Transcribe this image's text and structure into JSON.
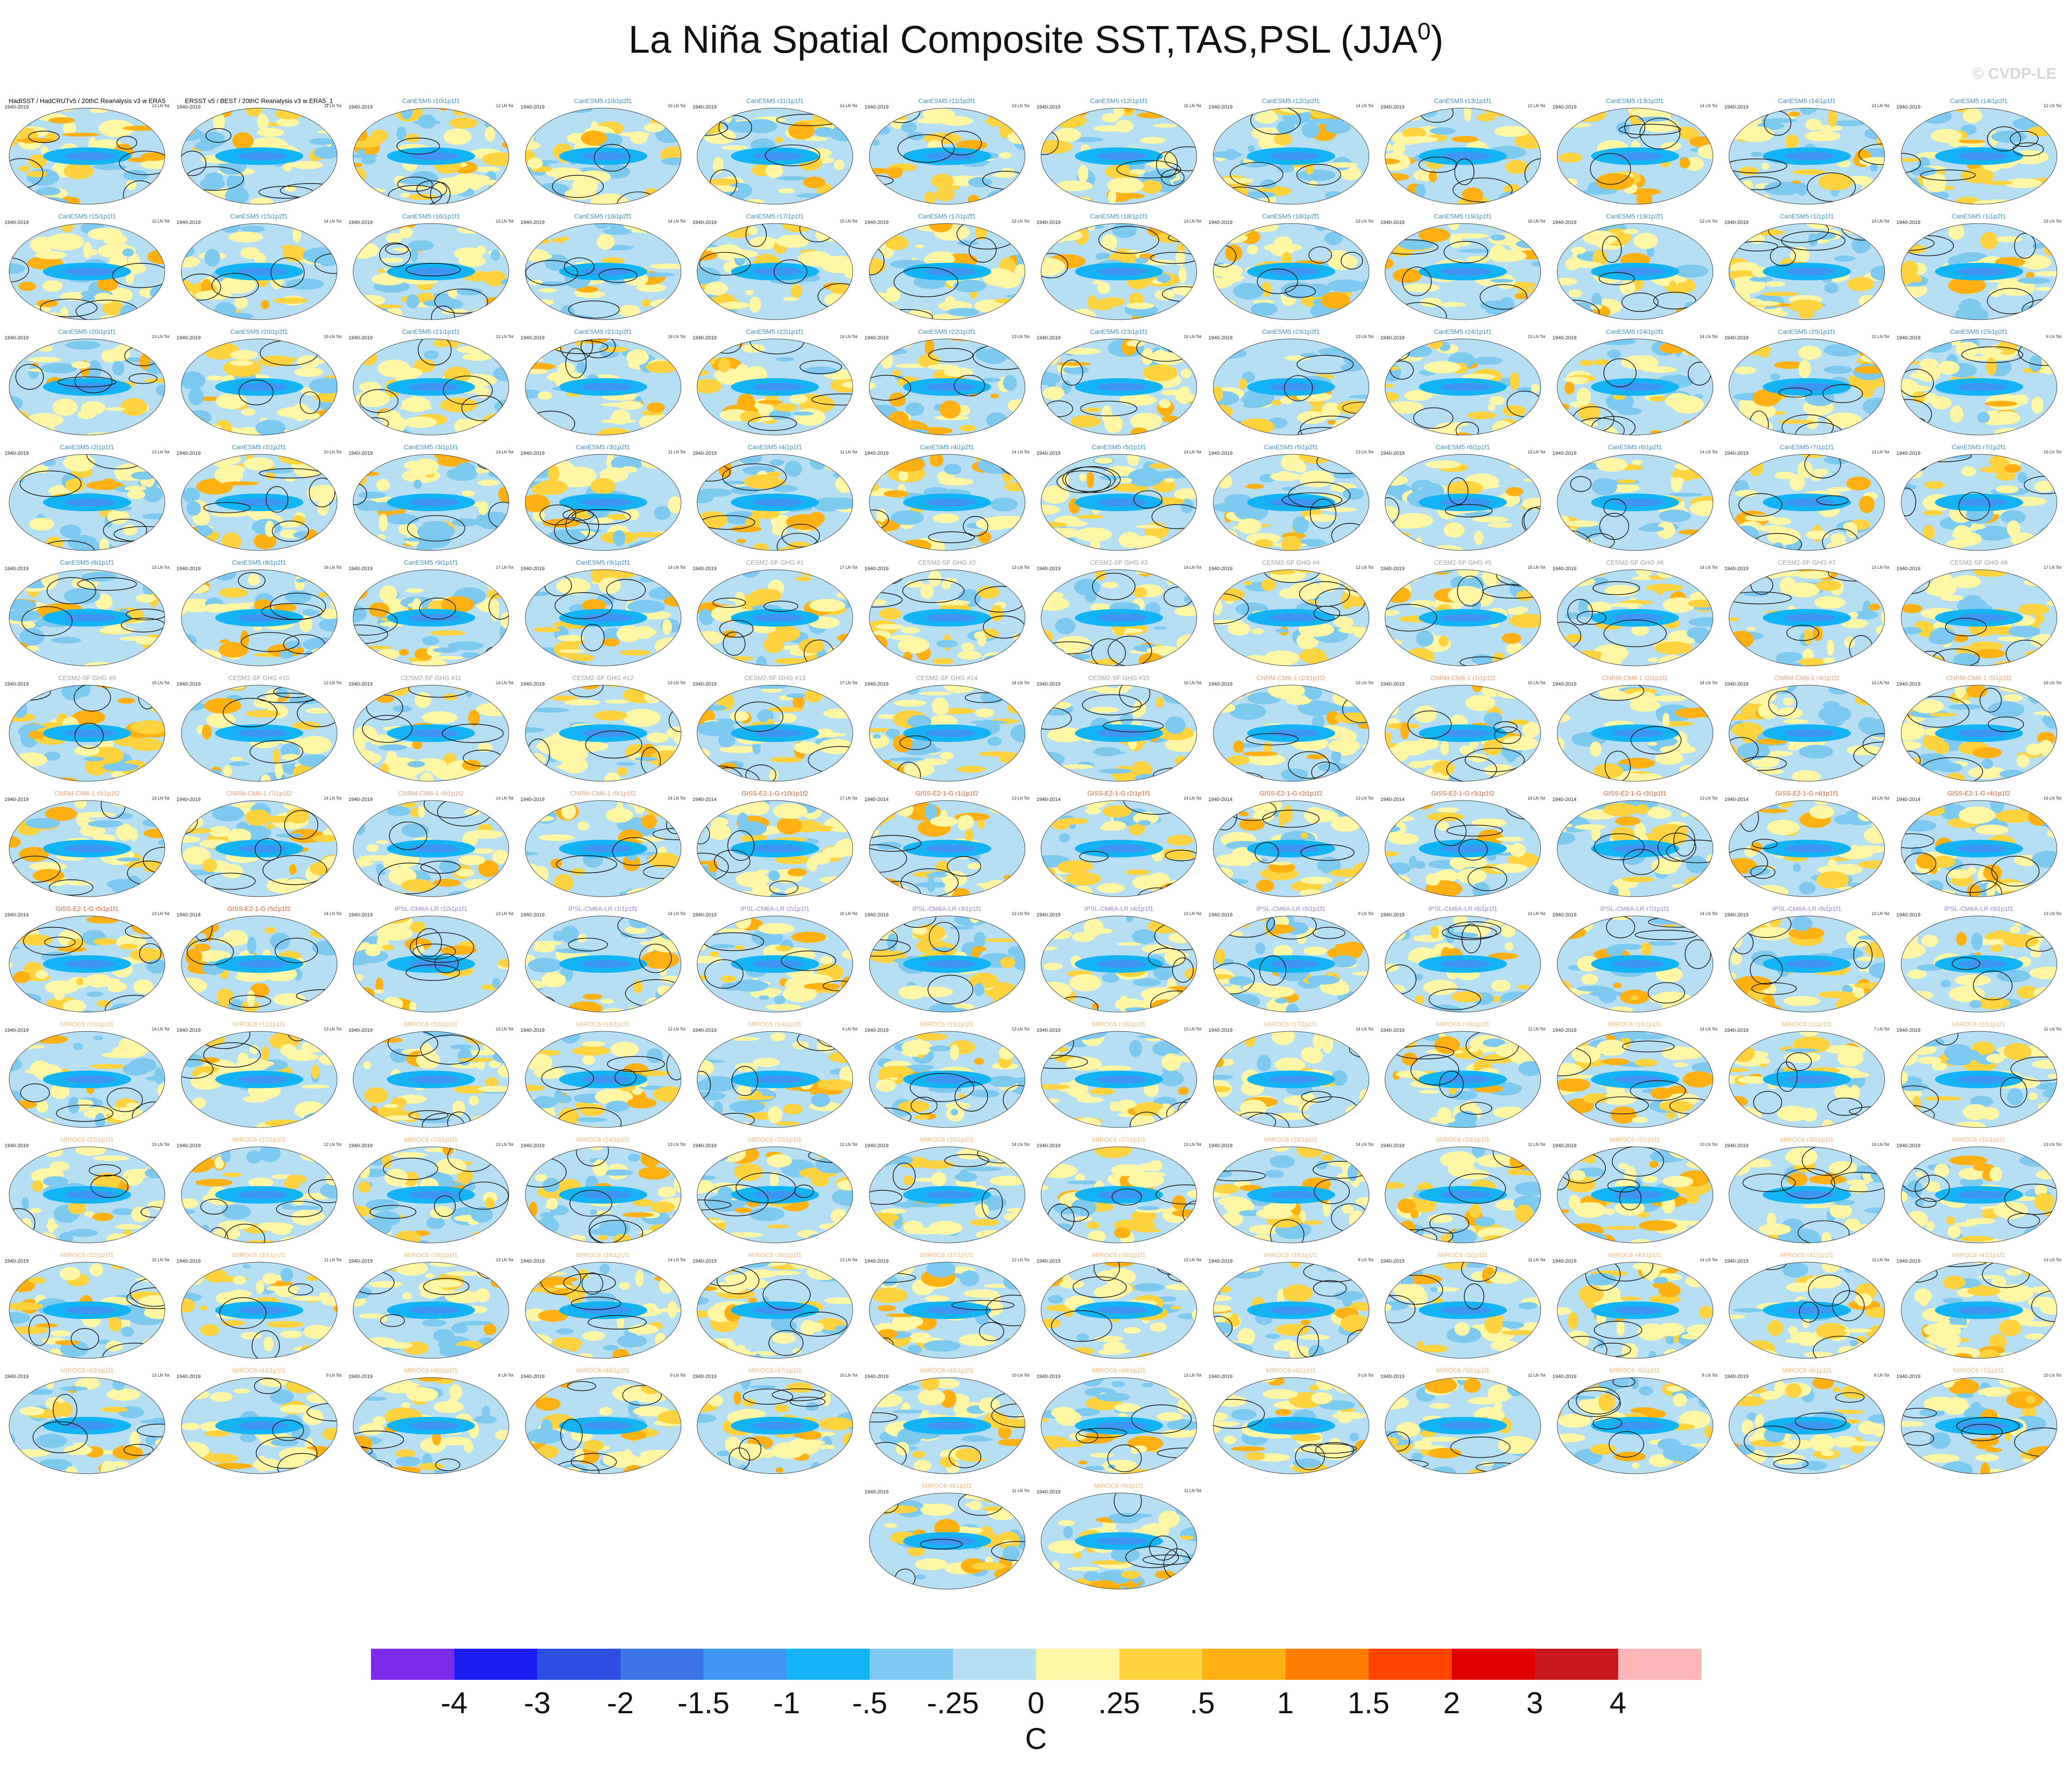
{
  "title": "La Niña Spatial Composite SST,TAS,PSL (JJA",
  "title_superscript": "0",
  "title_close": ")",
  "watermark": "© CVDP-LE",
  "panel_title_colors": {
    "obs": "#000000",
    "CanESM5": "#3a8fc4",
    "CESM2-SF GHG": "#9aa0a6",
    "CNRM-CM6-1": "#e8a07a",
    "GISS-E2-1-G": "#d06030",
    "IPSL-CM6A-LR": "#9b7fd8",
    "MIROC6": "#f0b97a"
  },
  "panels": [
    {
      "title": "HadISST / HadCRUTv5 / 20thC Reanalysis v3 w ERA5",
      "years": "1940-2019",
      "stat": "13 LN Tot",
      "group": "obs"
    },
    {
      "title": "ERSST v5 / BEST / 20thC Reanalysis v3 w ERA5_1",
      "years": "1940-2019",
      "stat": "11 LN Tot",
      "group": "obs"
    },
    {
      "title": "CanESM5 r10i1p1f1",
      "years": "1940-2019",
      "stat": "12 LN Tot",
      "group": "CanESM5"
    },
    {
      "title": "CanESM5 r10i1p2f1",
      "years": "1940-2019",
      "stat": "16 LN Tot",
      "group": "CanESM5"
    },
    {
      "title": "CanESM5 r11i1p1f1",
      "years": "1940-2019",
      "stat": "14 LN Tot",
      "group": "CanESM5"
    },
    {
      "title": "CanESM5 r11i1p2f1",
      "years": "1940-2019",
      "stat": "13 LN Tot",
      "group": "CanESM5"
    },
    {
      "title": "CanESM5 r12i1p1f1",
      "years": "1940-2019",
      "stat": "15 LN Tot",
      "group": "CanESM5"
    },
    {
      "title": "CanESM5 r12i1p2f1",
      "years": "1940-2019",
      "stat": "14 LN Tot",
      "group": "CanESM5"
    },
    {
      "title": "CanESM5 r13i1p1f1",
      "years": "1940-2019",
      "stat": "12 LN Tot",
      "group": "CanESM5"
    },
    {
      "title": "CanESM5 r13i1p2f1",
      "years": "1940-2019",
      "stat": "14 LN Tot",
      "group": "CanESM5"
    },
    {
      "title": "CanESM5 r14i1p1f1",
      "years": "1940-2019",
      "stat": "13 LN Tot",
      "group": "CanESM5"
    },
    {
      "title": "CanESM5 r14i1p2f1",
      "years": "1940-2019",
      "stat": "12 LN Tot",
      "group": "CanESM5"
    },
    {
      "title": "CanESM5 r15i1p1f1",
      "years": "1940-2019",
      "stat": "12 LN Tot",
      "group": "CanESM5"
    },
    {
      "title": "CanESM5 r15i1p2f1",
      "years": "1940-2019",
      "stat": "14 LN Tot",
      "group": "CanESM5"
    },
    {
      "title": "CanESM5 r16i1p1f1",
      "years": "1940-2019",
      "stat": "13 LN Tot",
      "group": "CanESM5"
    },
    {
      "title": "CanESM5 r16i1p2f1",
      "years": "1940-2019",
      "stat": "14 LN Tot",
      "group": "CanESM5"
    },
    {
      "title": "CanESM5 r17i1p1f1",
      "years": "1940-2019",
      "stat": "15 LN Tot",
      "group": "CanESM5"
    },
    {
      "title": "CanESM5 r17i1p2f1",
      "years": "1940-2019",
      "stat": "13 LN Tot",
      "group": "CanESM5"
    },
    {
      "title": "CanESM5 r18i1p1f1",
      "years": "1940-2019",
      "stat": "14 LN Tot",
      "group": "CanESM5"
    },
    {
      "title": "CanESM5 r18i1p2f1",
      "years": "1940-2019",
      "stat": "13 LN Tot",
      "group": "CanESM5"
    },
    {
      "title": "CanESM5 r19i1p1f1",
      "years": "1940-2019",
      "stat": "16 LN Tot",
      "group": "CanESM5"
    },
    {
      "title": "CanESM5 r19i1p2f1",
      "years": "1940-2019",
      "stat": "12 LN Tot",
      "group": "CanESM5"
    },
    {
      "title": "CanESM5 r1i1p1f1",
      "years": "1940-2019",
      "stat": "14 LN Tot",
      "group": "CanESM5"
    },
    {
      "title": "CanESM5 r1i1p2f1",
      "years": "1940-2019",
      "stat": "13 LN Tot",
      "group": "CanESM5"
    },
    {
      "title": "CanESM5 r20i1p1f1",
      "years": "1940-2019",
      "stat": "13 LN Tot",
      "group": "CanESM5"
    },
    {
      "title": "CanESM5 r20i1p2f1",
      "years": "1940-2019",
      "stat": "15 LN Tot",
      "group": "CanESM5"
    },
    {
      "title": "CanESM5 r21i1p1f1",
      "years": "1940-2019",
      "stat": "12 LN Tot",
      "group": "CanESM5"
    },
    {
      "title": "CanESM5 r21i1p2f1",
      "years": "1940-2019",
      "stat": "16 LN Tot",
      "group": "CanESM5"
    },
    {
      "title": "CanESM5 r22i1p1f1",
      "years": "1940-2019",
      "stat": "14 LN Tot",
      "group": "CanESM5"
    },
    {
      "title": "CanESM5 r22i1p2f1",
      "years": "1940-2019",
      "stat": "13 LN Tot",
      "group": "CanESM5"
    },
    {
      "title": "CanESM5 r23i1p1f1",
      "years": "1940-2019",
      "stat": "15 LN Tot",
      "group": "CanESM5"
    },
    {
      "title": "CanESM5 r23i1p2f1",
      "years": "1940-2019",
      "stat": "13 LN Tot",
      "group": "CanESM5"
    },
    {
      "title": "CanESM5 r24i1p1f1",
      "years": "1940-2019",
      "stat": "13 LN Tot",
      "group": "CanESM5"
    },
    {
      "title": "CanESM5 r24i1p2f1",
      "years": "1940-2019",
      "stat": "14 LN Tot",
      "group": "CanESM5"
    },
    {
      "title": "CanESM5 r25i1p1f1",
      "years": "1940-2019",
      "stat": "12 LN Tot",
      "group": "CanESM5"
    },
    {
      "title": "CanESM5 r25i1p2f1",
      "years": "1940-2019",
      "stat": "9 LN Tot",
      "group": "CanESM5"
    },
    {
      "title": "CanESM5 r2i1p1f1",
      "years": "1940-2019",
      "stat": "13 LN Tot",
      "group": "CanESM5"
    },
    {
      "title": "CanESM5 r2i1p2f1",
      "years": "1940-2019",
      "stat": "10 LN Tot",
      "group": "CanESM5"
    },
    {
      "title": "CanESM5 r3i1p1f1",
      "years": "1940-2019",
      "stat": "14 LN Tot",
      "group": "CanESM5"
    },
    {
      "title": "CanESM5 r3i1p2f1",
      "years": "1940-2019",
      "stat": "11 LN Tot",
      "group": "CanESM5"
    },
    {
      "title": "CanESM5 r4i1p1f1",
      "years": "1940-2019",
      "stat": "11 LN Tot",
      "group": "CanESM5"
    },
    {
      "title": "CanESM5 r4i1p2f1",
      "years": "1940-2019",
      "stat": "14 LN Tot",
      "group": "CanESM5"
    },
    {
      "title": "CanESM5 r5i1p1f1",
      "years": "1940-2019",
      "stat": "14 LN Tot",
      "group": "CanESM5"
    },
    {
      "title": "CanESM5 r5i1p2f1",
      "years": "1940-2019",
      "stat": "13 LN Tot",
      "group": "CanESM5"
    },
    {
      "title": "CanESM5 r6i1p1f1",
      "years": "1940-2019",
      "stat": "13 LN Tot",
      "group": "CanESM5"
    },
    {
      "title": "CanESM5 r6i1p2f1",
      "years": "1940-2019",
      "stat": "14 LN Tot",
      "group": "CanESM5"
    },
    {
      "title": "CanESM5 r7i1p1f1",
      "years": "1940-2019",
      "stat": "13 LN Tot",
      "group": "CanESM5"
    },
    {
      "title": "CanESM5 r7i1p2f1",
      "years": "1940-2019",
      "stat": "15 LN Tot",
      "group": "CanESM5"
    },
    {
      "title": "CanESM5 r8i1p1f1",
      "years": "1940-2019",
      "stat": "13 LN Tot",
      "group": "CanESM5"
    },
    {
      "title": "CanESM5 r8i1p2f1",
      "years": "1940-2019",
      "stat": "16 LN Tot",
      "group": "CanESM5"
    },
    {
      "title": "CanESM5 r9i1p1f1",
      "years": "1940-2019",
      "stat": "17 LN Tot",
      "group": "CanESM5"
    },
    {
      "title": "CanESM5 r9i1p2f1",
      "years": "1940-2019",
      "stat": "14 LN Tot",
      "group": "CanESM5"
    },
    {
      "title": "CESM2-SF GHG #1",
      "years": "1940-2019",
      "stat": "17 LN Tot",
      "group": "CESM2-SF GHG"
    },
    {
      "title": "CESM2-SF GHG #2",
      "years": "1940-2019",
      "stat": "13 LN Tot",
      "group": "CESM2-SF GHG"
    },
    {
      "title": "CESM2-SF GHG #3",
      "years": "1940-2019",
      "stat": "14 LN Tot",
      "group": "CESM2-SF GHG"
    },
    {
      "title": "CESM2-SF GHG #4",
      "years": "1940-2019",
      "stat": "12 LN Tot",
      "group": "CESM2-SF GHG"
    },
    {
      "title": "CESM2-SF GHG #5",
      "years": "1940-2019",
      "stat": "15 LN Tot",
      "group": "CESM2-SF GHG"
    },
    {
      "title": "CESM2-SF GHG #6",
      "years": "1940-2019",
      "stat": "14 LN Tot",
      "group": "CESM2-SF GHG"
    },
    {
      "title": "CESM2-SF GHG #7",
      "years": "1940-2019",
      "stat": "13 LN Tot",
      "group": "CESM2-SF GHG"
    },
    {
      "title": "CESM2-SF GHG #8",
      "years": "1940-2019",
      "stat": "17 LN Tot",
      "group": "CESM2-SF GHG"
    },
    {
      "title": "CESM2-SF GHG #9",
      "years": "1940-2019",
      "stat": "15 LN Tot",
      "group": "CESM2-SF GHG"
    },
    {
      "title": "CESM2-SF GHG #10",
      "years": "1940-2019",
      "stat": "12 LN Tot",
      "group": "CESM2-SF GHG"
    },
    {
      "title": "CESM2-SF GHG #11",
      "years": "1940-2019",
      "stat": "14 LN Tot",
      "group": "CESM2-SF GHG"
    },
    {
      "title": "CESM2-SF GHG #12",
      "years": "1940-2019",
      "stat": "13 LN Tot",
      "group": "CESM2-SF GHG"
    },
    {
      "title": "CESM2-SF GHG #13",
      "years": "1940-2019",
      "stat": "17 LN Tot",
      "group": "CESM2-SF GHG"
    },
    {
      "title": "CESM2-SF GHG #14",
      "years": "1940-2019",
      "stat": "14 LN Tot",
      "group": "CESM2-SF GHG"
    },
    {
      "title": "CESM2-SF GHG #15",
      "years": "1940-2019",
      "stat": "16 LN Tot",
      "group": "CESM2-SF GHG"
    },
    {
      "title": "CNRM-CM6-1 r10i1p1f2",
      "years": "1940-2019",
      "stat": "13 LN Tot",
      "group": "CNRM-CM6-1"
    },
    {
      "title": "CNRM-CM6-1 r1i1p1f2",
      "years": "1940-2019",
      "stat": "15 LN Tot",
      "group": "CNRM-CM6-1"
    },
    {
      "title": "CNRM-CM6-1 r2i1p1f2",
      "years": "1940-2019",
      "stat": "14 LN Tot",
      "group": "CNRM-CM6-1"
    },
    {
      "title": "CNRM-CM6-1 r4i1p1f2",
      "years": "1940-2019",
      "stat": "14 LN Tot",
      "group": "CNRM-CM6-1"
    },
    {
      "title": "CNRM-CM6-1 r5i1p1f2",
      "years": "1940-2019",
      "stat": "16 LN Tot",
      "group": "CNRM-CM6-1"
    },
    {
      "title": "CNRM-CM6-1 r5i1p1f2",
      "years": "1940-2019",
      "stat": "13 LN Tot",
      "group": "CNRM-CM6-1"
    },
    {
      "title": "CNRM-CM6-1 r7i1p1f2",
      "years": "1940-2019",
      "stat": "14 LN Tot",
      "group": "CNRM-CM6-1"
    },
    {
      "title": "CNRM-CM6-1 r8i1p1f2",
      "years": "1940-2019",
      "stat": "14 LN Tot",
      "group": "CNRM-CM6-1"
    },
    {
      "title": "CNRM-CM6-1 r9i1p1f2",
      "years": "1940-2019",
      "stat": "14 LN Tot",
      "group": "CNRM-CM6-1"
    },
    {
      "title": "GISS-E2-1-G r10i1p1f2",
      "years": "1940-2014",
      "stat": "17 LN Tot",
      "group": "GISS-E2-1-G"
    },
    {
      "title": "GISS-E2-1-G r1i1p1f2",
      "years": "1940-2014",
      "stat": "13 LN Tot",
      "group": "GISS-E2-1-G"
    },
    {
      "title": "GISS-E2-1-G r2i1p1f1",
      "years": "1940-2014",
      "stat": "14 LN Tot",
      "group": "GISS-E2-1-G"
    },
    {
      "title": "GISS-E2-1-G r2i1p1f2",
      "years": "1940-2014",
      "stat": "13 LN Tot",
      "group": "GISS-E2-1-G"
    },
    {
      "title": "GISS-E2-1-G r3i1p1f2",
      "years": "1940-2014",
      "stat": "14 LN Tot",
      "group": "GISS-E2-1-G"
    },
    {
      "title": "GISS-E2-1-G r3i1p1f1",
      "years": "1940-2014",
      "stat": "13 LN Tot",
      "group": "GISS-E2-1-G"
    },
    {
      "title": "GISS-E2-1-G r4i1p1f1",
      "years": "1940-2014",
      "stat": "14 LN Tot",
      "group": "GISS-E2-1-G"
    },
    {
      "title": "GISS-E2-1-G r4i1p1f2",
      "years": "1940-2014",
      "stat": "16 LN Tot",
      "group": "GISS-E2-1-G"
    },
    {
      "title": "GISS-E2-1-G r5i1p1f1",
      "years": "1940-2014",
      "stat": "13 LN Tot",
      "group": "GISS-E2-1-G"
    },
    {
      "title": "GISS-E2-1-G r5i1p1f2",
      "years": "1940-2014",
      "stat": "14 LN Tot",
      "group": "GISS-E2-1-G"
    },
    {
      "title": "IPSL-CM6A-LR r10i1p1f1",
      "years": "1940-2019",
      "stat": "13 LN Tot",
      "group": "IPSL-CM6A-LR"
    },
    {
      "title": "IPSL-CM6A-LR r1i1p1f1",
      "years": "1940-2019",
      "stat": "14 LN Tot",
      "group": "IPSL-CM6A-LR"
    },
    {
      "title": "IPSL-CM6A-LR r2i1p1f1",
      "years": "1940-2019",
      "stat": "15 LN Tot",
      "group": "IPSL-CM6A-LR"
    },
    {
      "title": "IPSL-CM6A-LR r3i1p1f1",
      "years": "1940-2019",
      "stat": "12 LN Tot",
      "group": "IPSL-CM6A-LR"
    },
    {
      "title": "IPSL-CM6A-LR r4i1p1f1",
      "years": "1940-2019",
      "stat": "13 LN Tot",
      "group": "IPSL-CM6A-LR"
    },
    {
      "title": "IPSL-CM6A-LR r5i1p1f1",
      "years": "1940-2019",
      "stat": "9 LN Tot",
      "group": "IPSL-CM6A-LR"
    },
    {
      "title": "IPSL-CM6A-LR r6i1p1f1",
      "years": "1940-2019",
      "stat": "14 LN Tot",
      "group": "IPSL-CM6A-LR"
    },
    {
      "title": "IPSL-CM6A-LR r7i1p1f1",
      "years": "1940-2019",
      "stat": "14 LN Tot",
      "group": "IPSL-CM6A-LR"
    },
    {
      "title": "IPSL-CM6A-LR r8i1p1f1",
      "years": "1940-2019",
      "stat": "12 LN Tot",
      "group": "IPSL-CM6A-LR"
    },
    {
      "title": "IPSL-CM6A-LR r9i1p1f1",
      "years": "1940-2019",
      "stat": "13 LN Tot",
      "group": "IPSL-CM6A-LR"
    },
    {
      "title": "MIROC6 r10i1p1f1",
      "years": "1940-2019",
      "stat": "14 LN Tot",
      "group": "MIROC6"
    },
    {
      "title": "MIROC6 r11i1p1f1",
      "years": "1940-2019",
      "stat": "13 LN Tot",
      "group": "MIROC6"
    },
    {
      "title": "MIROC6 r12i1p1f1",
      "years": "1940-2019",
      "stat": "13 LN Tot",
      "group": "MIROC6"
    },
    {
      "title": "MIROC6 r13i1p1f1",
      "years": "1940-2019",
      "stat": "12 LN Tot",
      "group": "MIROC6"
    },
    {
      "title": "MIROC6 r14i1p1f1",
      "years": "1940-2019",
      "stat": "9 LN Tot",
      "group": "MIROC6"
    },
    {
      "title": "MIROC6 r15i1p1f1",
      "years": "1940-2019",
      "stat": "13 LN Tot",
      "group": "MIROC6"
    },
    {
      "title": "MIROC6 r16i1p1f1",
      "years": "1940-2019",
      "stat": "13 LN Tot",
      "group": "MIROC6"
    },
    {
      "title": "MIROC6 r17i1p1f1",
      "years": "1940-2019",
      "stat": "14 LN Tot",
      "group": "MIROC6"
    },
    {
      "title": "MIROC6 r18i1p1f1",
      "years": "1940-2019",
      "stat": "11 LN Tot",
      "group": "MIROC6"
    },
    {
      "title": "MIROC6 r19i1p1f1",
      "years": "1940-2019",
      "stat": "14 LN Tot",
      "group": "MIROC6"
    },
    {
      "title": "MIROC6 r1i1p1f1",
      "years": "1940-2019",
      "stat": "7 LN Tot",
      "group": "MIROC6"
    },
    {
      "title": "MIROC6 r20i1p1f1",
      "years": "1940-2019",
      "stat": "11 LN Tot",
      "group": "MIROC6"
    },
    {
      "title": "MIROC6 r21i1p1f1",
      "years": "1940-2019",
      "stat": "15 LN Tot",
      "group": "MIROC6"
    },
    {
      "title": "MIROC6 r22i1p1f1",
      "years": "1940-2019",
      "stat": "12 LN Tot",
      "group": "MIROC6"
    },
    {
      "title": "MIROC6 r23i1p1f1",
      "years": "1940-2019",
      "stat": "13 LN Tot",
      "group": "MIROC6"
    },
    {
      "title": "MIROC6 r24i1p1f1",
      "years": "1940-2019",
      "stat": "13 LN Tot",
      "group": "MIROC6"
    },
    {
      "title": "MIROC6 r25i1p1f1",
      "years": "1940-2019",
      "stat": "12 LN Tot",
      "group": "MIROC6"
    },
    {
      "title": "MIROC6 r26i1p1f1",
      "years": "1940-2019",
      "stat": "14 LN Tot",
      "group": "MIROC6"
    },
    {
      "title": "MIROC6 r27i1p1f1",
      "years": "1940-2019",
      "stat": "13 LN Tot",
      "group": "MIROC6"
    },
    {
      "title": "MIROC6 r28i1p1f1",
      "years": "1940-2019",
      "stat": "14 LN Tot",
      "group": "MIROC6"
    },
    {
      "title": "MIROC6 r29i1p1f1",
      "years": "1940-2019",
      "stat": "11 LN Tot",
      "group": "MIROC6"
    },
    {
      "title": "MIROC6 r2i1p1f1",
      "years": "1940-2019",
      "stat": "10 LN Tot",
      "group": "MIROC6"
    },
    {
      "title": "MIROC6 r30i1p1f1",
      "years": "1940-2019",
      "stat": "14 LN Tot",
      "group": "MIROC6"
    },
    {
      "title": "MIROC6 r31i1p1f1",
      "years": "1940-2019",
      "stat": "13 LN Tot",
      "group": "MIROC6"
    },
    {
      "title": "MIROC6 r32i1p1f1",
      "years": "1940-2019",
      "stat": "15 LN Tot",
      "group": "MIROC6"
    },
    {
      "title": "MIROC6 r33i1p1f1",
      "years": "1940-2019",
      "stat": "11 LN Tot",
      "group": "MIROC6"
    },
    {
      "title": "MIROC6 r34i1p1f1",
      "years": "1940-2019",
      "stat": "12 LN Tot",
      "group": "MIROC6"
    },
    {
      "title": "MIROC6 r35i1p1f1",
      "years": "1940-2019",
      "stat": "14 LN Tot",
      "group": "MIROC6"
    },
    {
      "title": "MIROC6 r36i1p1f1",
      "years": "1940-2019",
      "stat": "13 LN Tot",
      "group": "MIROC6"
    },
    {
      "title": "MIROC6 r37i1p1f1",
      "years": "1940-2019",
      "stat": "12 LN Tot",
      "group": "MIROC6"
    },
    {
      "title": "MIROC6 r38i1p1f1",
      "years": "1940-2019",
      "stat": "13 LN Tot",
      "group": "MIROC6"
    },
    {
      "title": "MIROC6 r39i1p1f1",
      "years": "1940-2019",
      "stat": "8 LN Tot",
      "group": "MIROC6"
    },
    {
      "title": "MIROC6 r3i1p1f1",
      "years": "1940-2019",
      "stat": "11 LN Tot",
      "group": "MIROC6"
    },
    {
      "title": "MIROC6 r40i1p1f1",
      "years": "1940-2019",
      "stat": "14 LN Tot",
      "group": "MIROC6"
    },
    {
      "title": "MIROC6 r41i1p1f1",
      "years": "1940-2019",
      "stat": "11 LN Tot",
      "group": "MIROC6"
    },
    {
      "title": "MIROC6 r42i1p1f1",
      "years": "1940-2019",
      "stat": "13 LN Tot",
      "group": "MIROC6"
    },
    {
      "title": "MIROC6 r43i1p1f1",
      "years": "1940-2019",
      "stat": "13 LN Tot",
      "group": "MIROC6"
    },
    {
      "title": "MIROC6 r44i1p1f1",
      "years": "1940-2019",
      "stat": "9 LN Tot",
      "group": "MIROC6"
    },
    {
      "title": "MIROC6 r45i1p1f1",
      "years": "1940-2019",
      "stat": "8 LN Tot",
      "group": "MIROC6"
    },
    {
      "title": "MIROC6 r46i1p1f1",
      "years": "1940-2019",
      "stat": "9 LN Tot",
      "group": "MIROC6"
    },
    {
      "title": "MIROC6 r47i1p1f1",
      "years": "1940-2019",
      "stat": "10 LN Tot",
      "group": "MIROC6"
    },
    {
      "title": "MIROC6 r48i1p1f1",
      "years": "1940-2019",
      "stat": "10 LN Tot",
      "group": "MIROC6"
    },
    {
      "title": "MIROC6 r49i1p1f1",
      "years": "1940-2019",
      "stat": "13 LN Tot",
      "group": "MIROC6"
    },
    {
      "title": "MIROC6 r4i1p1f1",
      "years": "1940-2019",
      "stat": "9 LN Tot",
      "group": "MIROC6"
    },
    {
      "title": "MIROC6 r50i1p1f1",
      "years": "1940-2019",
      "stat": "11 LN Tot",
      "group": "MIROC6"
    },
    {
      "title": "MIROC6 r5i1p1f1",
      "years": "1940-2019",
      "stat": "8 LN Tot",
      "group": "MIROC6"
    },
    {
      "title": "MIROC6 r6i1p1f1",
      "years": "1940-2019",
      "stat": "9 LN Tot",
      "group": "MIROC6"
    },
    {
      "title": "MIROC6 r7i1p1f1",
      "years": "1940-2019",
      "stat": "10 LN Tot",
      "group": "MIROC6"
    },
    {
      "title": "MIROC6 r8i1p1f1",
      "years": "1940-2019",
      "stat": "11 LN Tot",
      "group": "MIROC6"
    },
    {
      "title": "MIROC6 r9i1p1f1",
      "years": "1940-2019",
      "stat": "11 LN Tot",
      "group": "MIROC6"
    }
  ],
  "colorbar": {
    "colors": [
      "#7d2bea",
      "#1c1cf0",
      "#2b4fe0",
      "#3a74e6",
      "#3f95f2",
      "#14b4f4",
      "#7dc9ef",
      "#b6dff3",
      "#fff7a6",
      "#ffd23f",
      "#ffb013",
      "#ff7d00",
      "#ff4500",
      "#e10000",
      "#c8191e",
      "#ffb6b9"
    ],
    "ticks": [
      "-4",
      "-3",
      "-2",
      "-1.5",
      "-1",
      "-.5",
      "-.25",
      "0",
      ".25",
      ".5",
      "1",
      "1.5",
      "2",
      "3",
      "4"
    ],
    "unit": "C"
  }
}
